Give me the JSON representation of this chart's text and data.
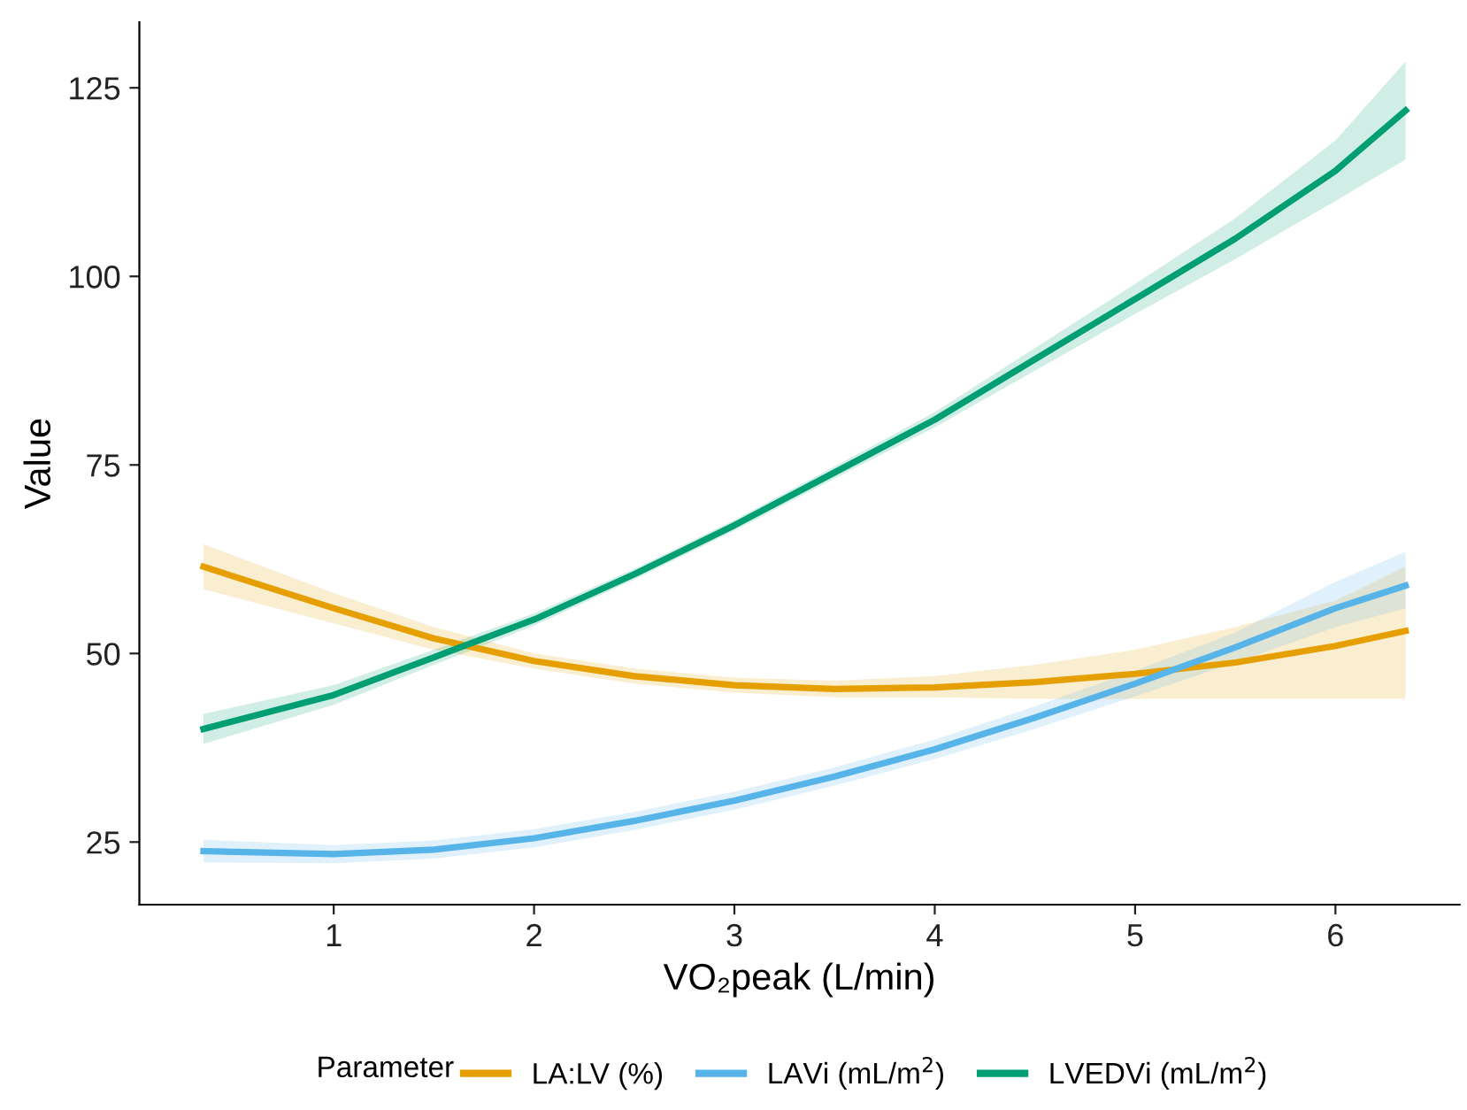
{
  "chart_data": {
    "type": "line",
    "xlabel": "VO₂peak (L/min)",
    "ylabel": "Value",
    "legend_title": "Parameter",
    "legend": "bottom",
    "grid": false,
    "marker": "none",
    "line_style": "solid",
    "x": [
      0.35,
      1,
      1.5,
      2,
      2.5,
      3,
      3.5,
      4,
      4.5,
      5,
      5.5,
      6,
      6.35
    ],
    "xlim": [
      0.03,
      6.62
    ],
    "xticks": [
      1,
      2,
      3,
      4,
      5,
      6
    ],
    "ylim": [
      16.7,
      133.7
    ],
    "yticks": [
      25,
      50,
      75,
      100,
      125
    ],
    "series": [
      {
        "name": "LA:LV (%)",
        "color": "#e69f00",
        "values": [
          61.5,
          56,
          52,
          49,
          47,
          45.8,
          45.3,
          45.5,
          46.2,
          47.3,
          48.8,
          51,
          53
        ],
        "lower": [
          58.5,
          54,
          50.5,
          48,
          46,
          44.8,
          44.2,
          44.2,
          44,
          44,
          44,
          44,
          44
        ],
        "upper": [
          64.5,
          58,
          53.5,
          50,
          48,
          46.8,
          46.4,
          47,
          48.5,
          50.5,
          53.5,
          57,
          61.5
        ]
      },
      {
        "name": "LAVi (mL/m$^{2}$)",
        "color": "#56b4e9",
        "values": [
          23.8,
          23.4,
          24,
          25.5,
          27.8,
          30.5,
          33.7,
          37.3,
          41.5,
          46,
          50.8,
          56,
          59
        ],
        "lower": [
          22.3,
          22.2,
          22.8,
          24.3,
          26.6,
          29.3,
          32.5,
          36,
          40,
          44.3,
          48.8,
          53.5,
          56
        ],
        "upper": [
          25.3,
          24.6,
          25.2,
          26.7,
          29,
          31.7,
          34.9,
          38.6,
          43,
          47.7,
          52.8,
          59.5,
          63.5
        ]
      },
      {
        "name": "LVEDVi (mL/m$^{2}$)",
        "color": "#009e73",
        "values": [
          40,
          44.5,
          49.5,
          54.5,
          60.5,
          67,
          74,
          81,
          89,
          97,
          105,
          114,
          122
        ],
        "lower": [
          38,
          43.2,
          48.5,
          53.7,
          59.8,
          66.3,
          73.2,
          80,
          87.5,
          95,
          102.3,
          110,
          115.5
        ],
        "upper": [
          42,
          45.8,
          50.5,
          55.3,
          61.2,
          67.7,
          74.8,
          82,
          90.5,
          99,
          107.7,
          118,
          128.5
        ]
      }
    ]
  }
}
